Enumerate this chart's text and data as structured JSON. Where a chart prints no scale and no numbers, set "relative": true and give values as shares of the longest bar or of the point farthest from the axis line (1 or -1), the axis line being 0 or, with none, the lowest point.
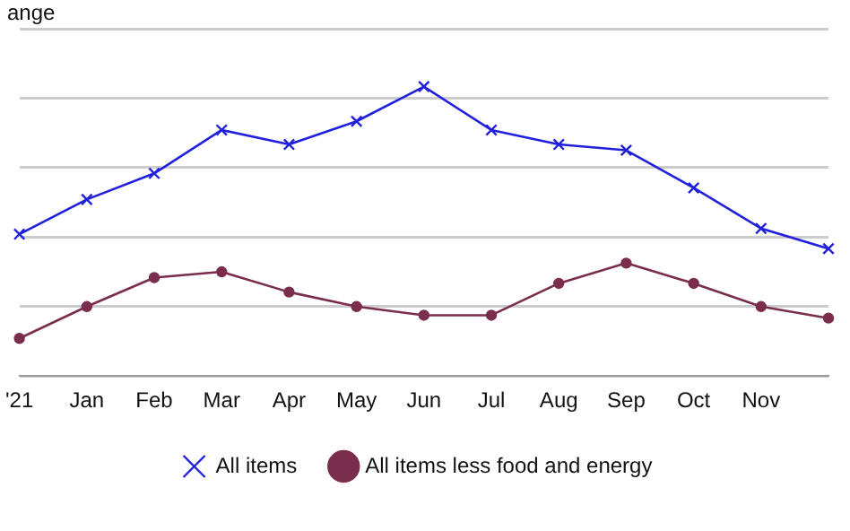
{
  "chart_data": {
    "type": "line",
    "title": "ange",
    "relative": true,
    "grid": "y",
    "legend": "bottom",
    "categories": [
      "'21",
      "Jan",
      "Feb",
      "Mar",
      "Apr",
      "May",
      "Jun",
      "Jul",
      "Aug",
      "Sep",
      "Oct",
      "Nov",
      null
    ],
    "series": [
      {
        "name": "All items",
        "color": "#2020dd",
        "marker": "cross",
        "values": [
          0.49,
          0.61,
          0.7,
          0.85,
          0.8,
          0.88,
          1,
          0.85,
          0.8,
          0.78,
          0.65,
          0.51,
          0.44
        ]
      },
      {
        "name": "All items less food and energy",
        "color": "#7b2d4e",
        "marker": "circle",
        "values": [
          0.13,
          0.24,
          0.34,
          0.36,
          0.29,
          0.24,
          0.21,
          0.21,
          0.32,
          0.39,
          0.32,
          0.24,
          0.2
        ]
      }
    ]
  }
}
